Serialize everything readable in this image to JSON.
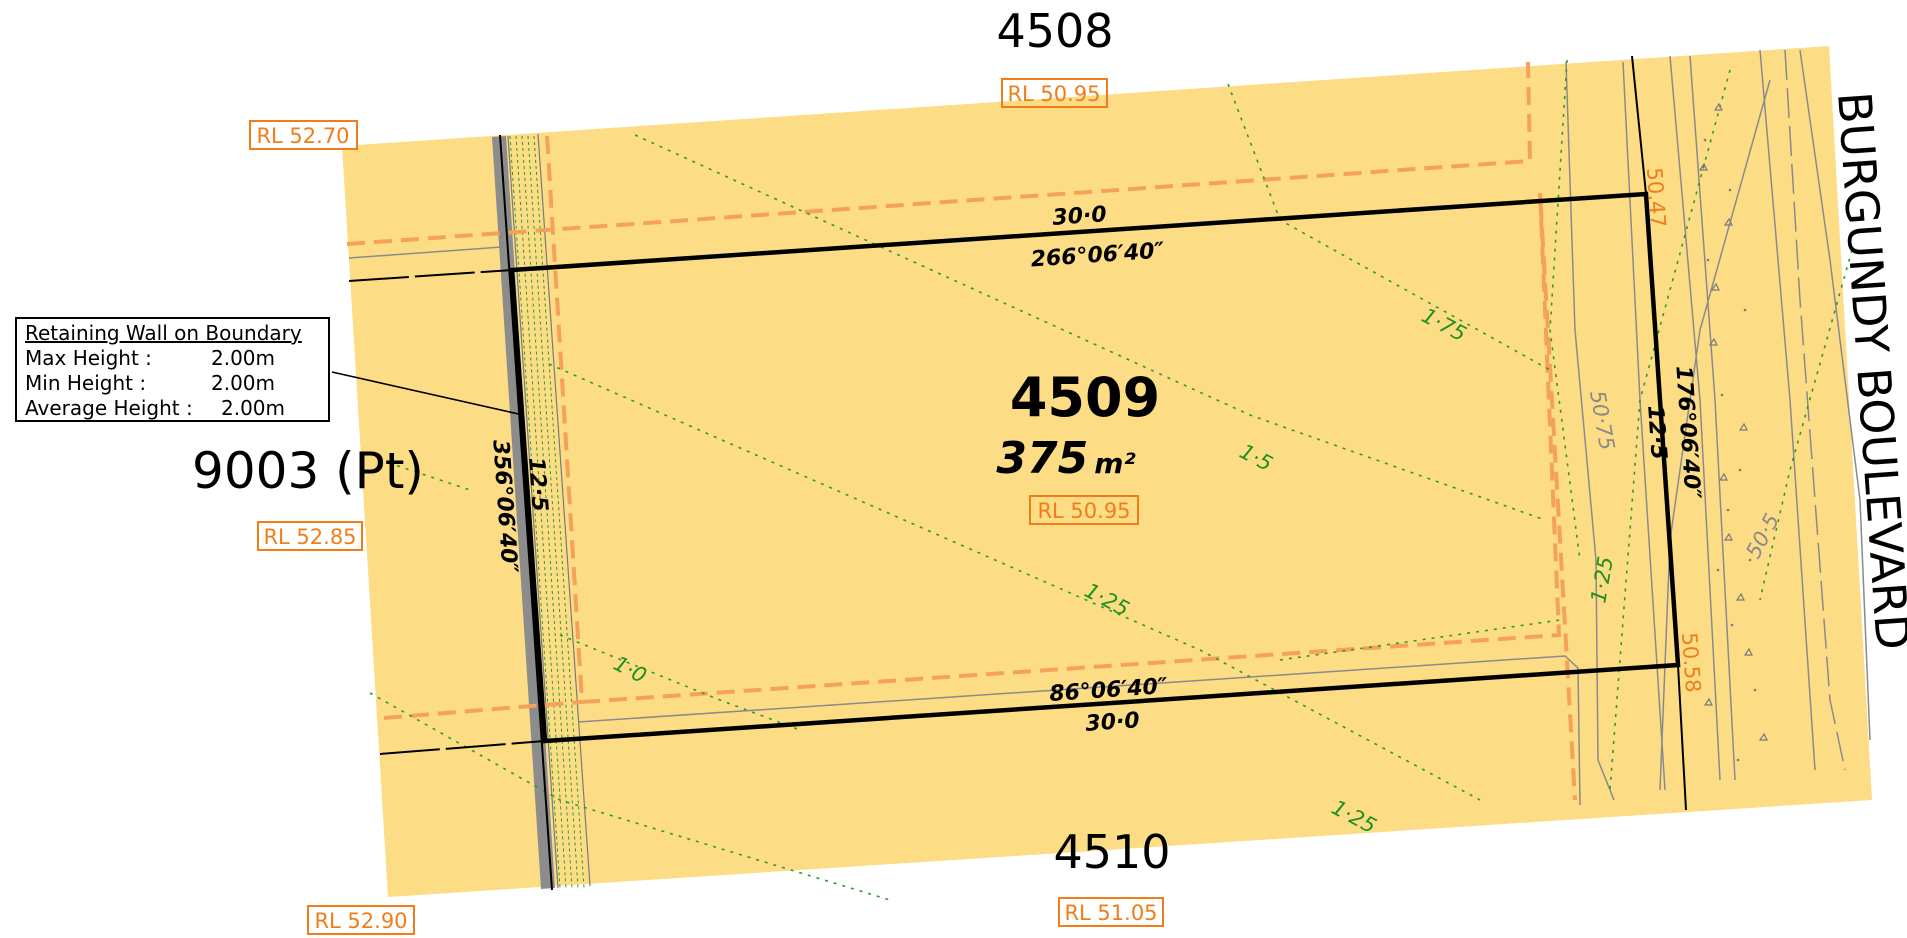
{
  "map": {
    "road_name": "BURGUNDY BOULEVARD",
    "lot": {
      "number": "4509",
      "area_value": "375",
      "area_unit": "m²",
      "rl": "RL 50.95",
      "frontage_north": "30·0",
      "bearing_north": "266°06′40″",
      "frontage_south": "30·0",
      "bearing_south": "86°06′40″",
      "depth_west": "12·5",
      "bearing_west": "356°06′40″",
      "depth_east": "12·5",
      "bearing_east": "176°06′40″"
    },
    "neighbours": {
      "north": "4508",
      "south": "4510",
      "west": "9003 (Pt)"
    },
    "rl_labels": {
      "north": "RL 50.95",
      "south": "RL 51.05",
      "nw": "RL 52.70",
      "west": "RL 52.85",
      "sw": "RL 52.90"
    },
    "road_levels": {
      "top": "50.47",
      "bottom": "50.58"
    },
    "contours": {
      "c175": "1·75",
      "c15": "1·5",
      "c125_mid": "1·25",
      "c10": "1·0",
      "c125_low": "1·25",
      "c125_road": "1·25"
    },
    "grey_contours": {
      "g5075": "50·75",
      "g505": "50·5"
    },
    "retaining_wall": {
      "title": "Retaining Wall on Boundary",
      "max_label": "Max Height :",
      "max_value": "2.00m",
      "min_label": "Min Height :",
      "min_value": "2.00m",
      "avg_label": "Average Height :",
      "avg_value": "2.00m"
    },
    "colors": {
      "lot_fill": "#fcdd86",
      "boundary": "#000000",
      "setback": "#f5a15a",
      "contour": "#2e9a2e",
      "rl": "#f07d19",
      "wall": "#8c8c8c"
    }
  }
}
